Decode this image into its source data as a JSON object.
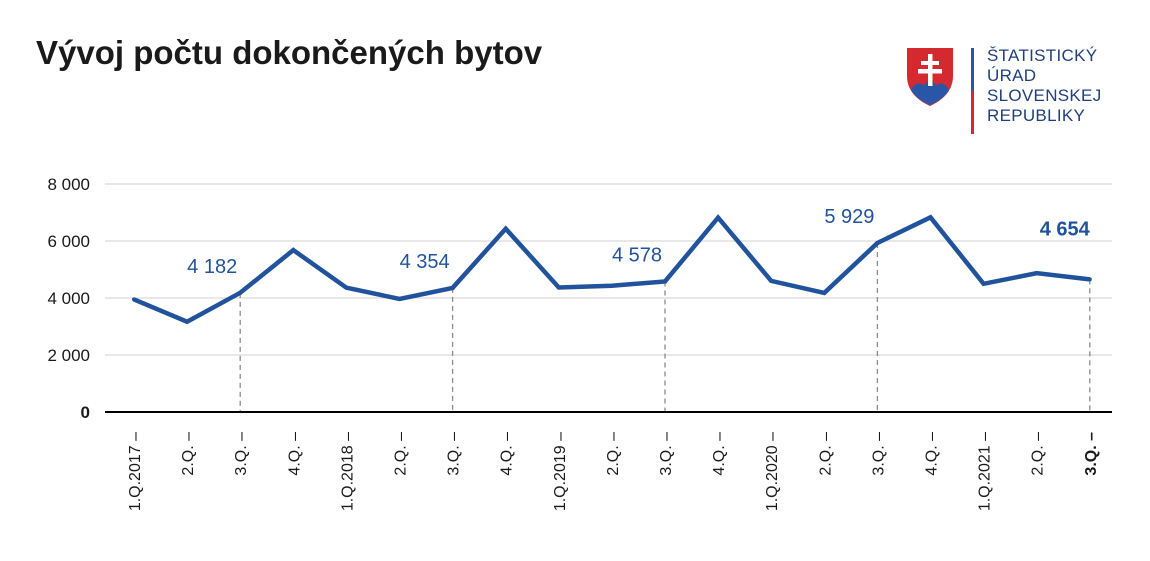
{
  "title": "Vývoj počtu dokončených bytov",
  "logo": {
    "lines": [
      "ŠTATISTICKÝ",
      "ÚRAD",
      "SLOVENSKEJ",
      "REPUBLIKY"
    ],
    "colors": {
      "text": "#1f3f7f",
      "red": "#d42a2f",
      "blue": "#2a56a8"
    }
  },
  "chart_data": {
    "type": "line",
    "categories": [
      "1.Q.2017",
      "2.Q.",
      "3.Q.",
      "4.Q.",
      "1.Q.2018",
      "2.Q.",
      "3.Q.",
      "4.Q.",
      "1.Q.2019",
      "2.Q.",
      "3.Q.",
      "4.Q.",
      "1.Q.2020",
      "2.Q.",
      "3.Q.",
      "4.Q.",
      "1.Q.2021",
      "2.Q.",
      "3.Q."
    ],
    "series": [
      {
        "values": [
          3950,
          3170,
          4182,
          5680,
          4360,
          3970,
          4354,
          6430,
          4370,
          4430,
          4578,
          6820,
          4600,
          4180,
          5929,
          6830,
          4500,
          4870,
          4654
        ]
      }
    ],
    "annotations": [
      {
        "index": 2,
        "label": "4 182"
      },
      {
        "index": 6,
        "label": "4 354"
      },
      {
        "index": 10,
        "label": "4 578"
      },
      {
        "index": 14,
        "label": "5 929"
      },
      {
        "index": 18,
        "label": "4 654",
        "bold": true
      }
    ],
    "y_ticks": [
      {
        "value": 0,
        "label": "0"
      },
      {
        "value": 2000,
        "label": "2 000"
      },
      {
        "value": 4000,
        "label": "4 000"
      },
      {
        "value": 6000,
        "label": "6 000"
      },
      {
        "value": 8000,
        "label": "8 000"
      }
    ],
    "ylim": [
      0,
      8000
    ],
    "grid": true,
    "colors": {
      "line": "#21539d",
      "grid": "#d0d0d0",
      "axis": "#000000",
      "guide": "#8c8c8c",
      "text": "#1a1a1a"
    }
  }
}
